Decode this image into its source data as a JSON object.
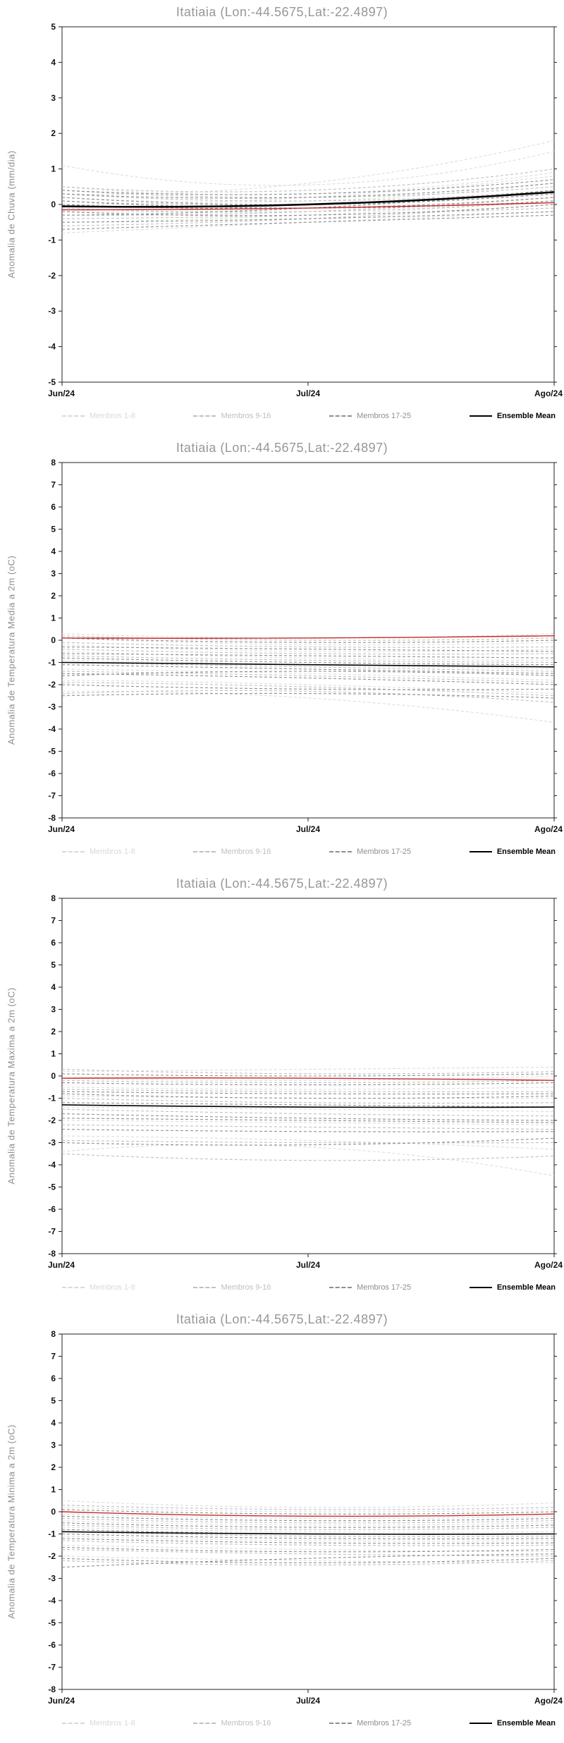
{
  "chart_data": [
    {
      "type": "line",
      "title": "Itatiaia (Lon:-44.5675,Lat:-22.4897)",
      "ylabel": "Anomalia de Chuva (mm/dia)",
      "ylim": [
        -5,
        5
      ],
      "x_ticklabels": [
        "Jun/24",
        "Jul/24",
        "Ago/24"
      ],
      "legend": [
        {
          "label": "Membros 1-8",
          "color": "#d9d9d9",
          "style": "dashed"
        },
        {
          "label": "Membros 9-16",
          "color": "#bfbfbf",
          "style": "dashed"
        },
        {
          "label": "Membros 17-25",
          "color": "#8f8f8f",
          "style": "dashed"
        },
        {
          "label": "Ensemble Mean",
          "color": "#000000",
          "style": "solid"
        }
      ],
      "colors": {
        "group1": "#dcdcdc",
        "group2": "#bfbfbf",
        "group3": "#8f8f8f",
        "mean": "#000000",
        "red": "#c62828"
      },
      "members_1_8": [
        [
          1.1,
          0.55,
          1.5
        ],
        [
          0.3,
          0.6,
          1.8
        ],
        [
          0.5,
          0.3,
          0.9
        ],
        [
          0.2,
          0.1,
          0.6
        ],
        [
          -0.2,
          -0.1,
          0.4
        ],
        [
          -0.5,
          -0.3,
          0.1
        ],
        [
          0.0,
          0.2,
          0.8
        ],
        [
          -0.8,
          -0.5,
          -0.2
        ]
      ],
      "members_9_16": [
        [
          0.4,
          0.2,
          0.5
        ],
        [
          0.1,
          0.0,
          0.3
        ],
        [
          -0.3,
          -0.2,
          0.2
        ],
        [
          -0.6,
          -0.4,
          0.0
        ],
        [
          0.3,
          0.1,
          0.4
        ],
        [
          -0.1,
          -0.2,
          0.1
        ],
        [
          -0.4,
          -0.3,
          -0.1
        ],
        [
          0.5,
          0.4,
          1.0
        ]
      ],
      "members_17_25": [
        [
          0.3,
          0.2,
          0.6
        ],
        [
          0.0,
          -0.1,
          0.2
        ],
        [
          -0.2,
          -0.3,
          0.0
        ],
        [
          -0.5,
          -0.4,
          -0.2
        ],
        [
          0.2,
          0.0,
          0.3
        ],
        [
          -0.7,
          -0.5,
          -0.3
        ],
        [
          0.1,
          -0.1,
          0.1
        ],
        [
          -0.3,
          -0.1,
          0.4
        ],
        [
          0.4,
          0.3,
          0.7
        ]
      ],
      "ensemble_mean": [
        -0.05,
        0.0,
        0.35
      ],
      "red_line": [
        -0.15,
        -0.1,
        0.05
      ]
    },
    {
      "type": "line",
      "title": "Itatiaia (Lon:-44.5675,Lat:-22.4897)",
      "ylabel": "Anomalia de Temperatura Media a 2m (oC)",
      "ylim": [
        -8,
        8
      ],
      "x_ticklabels": [
        "Jun/24",
        "Jul/24",
        "Ago/24"
      ],
      "legend": [
        {
          "label": "Membros 1-8",
          "color": "#d9d9d9",
          "style": "dashed"
        },
        {
          "label": "Membros 9-16",
          "color": "#bfbfbf",
          "style": "dashed"
        },
        {
          "label": "Membros 17-25",
          "color": "#8f8f8f",
          "style": "dashed"
        },
        {
          "label": "Ensemble Mean",
          "color": "#000000",
          "style": "solid"
        }
      ],
      "colors": {
        "group1": "#dcdcdc",
        "group2": "#bfbfbf",
        "group3": "#8f8f8f",
        "mean": "#000000",
        "red": "#c62828"
      },
      "members_1_8": [
        [
          0.3,
          0.1,
          0.3
        ],
        [
          0.1,
          -0.2,
          -0.1
        ],
        [
          -0.2,
          -0.5,
          -0.4
        ],
        [
          -0.5,
          -0.8,
          -0.9
        ],
        [
          -0.9,
          -1.1,
          -1.3
        ],
        [
          -1.3,
          -1.5,
          -1.8
        ],
        [
          -1.8,
          -2.0,
          -2.4
        ],
        [
          -2.3,
          -2.6,
          -3.7
        ]
      ],
      "members_9_16": [
        [
          0.2,
          0.0,
          0.1
        ],
        [
          -0.1,
          -0.3,
          -0.3
        ],
        [
          -0.4,
          -0.6,
          -0.6
        ],
        [
          -0.7,
          -0.9,
          -1.0
        ],
        [
          -1.0,
          -1.2,
          -1.4
        ],
        [
          -1.4,
          -1.6,
          -1.9
        ],
        [
          -1.9,
          -2.1,
          -2.5
        ],
        [
          -2.4,
          -2.3,
          -2.8
        ]
      ],
      "members_17_25": [
        [
          0.1,
          -0.1,
          0.0
        ],
        [
          -0.3,
          -0.4,
          -0.5
        ],
        [
          -0.6,
          -0.7,
          -0.8
        ],
        [
          -0.8,
          -1.0,
          -1.1
        ],
        [
          -1.1,
          -1.3,
          -1.5
        ],
        [
          -1.5,
          -1.7,
          -2.0
        ],
        [
          -2.0,
          -2.2,
          -2.2
        ],
        [
          -2.5,
          -2.4,
          -2.6
        ],
        [
          -1.6,
          -1.4,
          -1.6
        ]
      ],
      "ensemble_mean": [
        -1.0,
        -1.1,
        -1.2
      ],
      "red_line": [
        0.1,
        0.1,
        0.2
      ]
    },
    {
      "type": "line",
      "title": "Itatiaia (Lon:-44.5675,Lat:-22.4897)",
      "ylabel": "Anomalia de Temperatura Maxima a 2m (oC)",
      "ylim": [
        -8,
        8
      ],
      "x_ticklabels": [
        "Jun/24",
        "Jul/24",
        "Ago/24"
      ],
      "legend": [
        {
          "label": "Membros 1-8",
          "color": "#d9d9d9",
          "style": "dashed"
        },
        {
          "label": "Membros 9-16",
          "color": "#bfbfbf",
          "style": "dashed"
        },
        {
          "label": "Membros 17-25",
          "color": "#8f8f8f",
          "style": "dashed"
        },
        {
          "label": "Ensemble Mean",
          "color": "#000000",
          "style": "solid"
        }
      ],
      "colors": {
        "group1": "#dcdcdc",
        "group2": "#bfbfbf",
        "group3": "#8f8f8f",
        "mean": "#000000",
        "red": "#c62828"
      },
      "members_1_8": [
        [
          0.2,
          0.3,
          0.4
        ],
        [
          -0.1,
          -0.2,
          0.0
        ],
        [
          -0.5,
          -0.6,
          -0.5
        ],
        [
          -0.9,
          -1.0,
          -1.0
        ],
        [
          -1.4,
          -1.5,
          -1.6
        ],
        [
          -2.0,
          -2.1,
          -2.2
        ],
        [
          -2.7,
          -2.9,
          -3.3
        ],
        [
          -3.4,
          -3.2,
          -4.5
        ]
      ],
      "members_9_16": [
        [
          0.3,
          0.1,
          0.2
        ],
        [
          -0.2,
          -0.3,
          -0.2
        ],
        [
          -0.6,
          -0.7,
          -0.7
        ],
        [
          -1.0,
          -1.2,
          -1.2
        ],
        [
          -1.5,
          -1.7,
          -1.8
        ],
        [
          -2.2,
          -2.3,
          -2.4
        ],
        [
          -2.9,
          -3.0,
          -3.0
        ],
        [
          -3.5,
          -3.8,
          -3.6
        ]
      ],
      "members_17_25": [
        [
          0.1,
          0.0,
          0.1
        ],
        [
          -0.3,
          -0.4,
          -0.3
        ],
        [
          -0.7,
          -0.8,
          -0.8
        ],
        [
          -1.2,
          -1.3,
          -1.4
        ],
        [
          -1.7,
          -1.9,
          -2.0
        ],
        [
          -2.4,
          -2.5,
          -2.5
        ],
        [
          -3.0,
          -3.1,
          -2.8
        ],
        [
          -1.9,
          -2.0,
          -2.1
        ],
        [
          -0.8,
          -1.0,
          -0.9
        ]
      ],
      "ensemble_mean": [
        -1.3,
        -1.4,
        -1.4
      ],
      "red_line": [
        -0.1,
        -0.1,
        -0.2
      ]
    },
    {
      "type": "line",
      "title": "Itatiaia (Lon:-44.5675,Lat:-22.4897)",
      "ylabel": "Anomalia de Temperatura Minima a 2m (oC)",
      "ylim": [
        -8,
        8
      ],
      "x_ticklabels": [
        "Jun/24",
        "Jul/24",
        "Ago/24"
      ],
      "legend": [
        {
          "label": "Membros 1-8",
          "color": "#d9d9d9",
          "style": "dashed"
        },
        {
          "label": "Membros 9-16",
          "color": "#bfbfbf",
          "style": "dashed"
        },
        {
          "label": "Membros 17-25",
          "color": "#8f8f8f",
          "style": "dashed"
        },
        {
          "label": "Ensemble Mean",
          "color": "#000000",
          "style": "solid"
        }
      ],
      "colors": {
        "group1": "#dcdcdc",
        "group2": "#bfbfbf",
        "group3": "#8f8f8f",
        "mean": "#000000",
        "red": "#c62828"
      },
      "members_1_8": [
        [
          0.5,
          0.2,
          0.4
        ],
        [
          0.2,
          0.0,
          0.1
        ],
        [
          -0.1,
          -0.3,
          -0.2
        ],
        [
          -0.4,
          -0.6,
          -0.5
        ],
        [
          -0.7,
          -0.9,
          -0.9
        ],
        [
          -1.1,
          -1.3,
          -1.3
        ],
        [
          -1.5,
          -1.7,
          -1.8
        ],
        [
          -2.0,
          -2.2,
          -2.3
        ]
      ],
      "members_9_16": [
        [
          0.3,
          0.1,
          0.2
        ],
        [
          0.0,
          -0.2,
          -0.1
        ],
        [
          -0.3,
          -0.5,
          -0.4
        ],
        [
          -0.6,
          -0.8,
          -0.7
        ],
        [
          -0.9,
          -1.1,
          -1.1
        ],
        [
          -1.3,
          -1.5,
          -1.5
        ],
        [
          -1.7,
          -1.9,
          -2.0
        ],
        [
          -2.2,
          -2.4,
          -2.2
        ]
      ],
      "members_17_25": [
        [
          0.1,
          -0.1,
          0.0
        ],
        [
          -0.2,
          -0.4,
          -0.3
        ],
        [
          -0.5,
          -0.7,
          -0.6
        ],
        [
          -0.8,
          -1.0,
          -1.0
        ],
        [
          -1.2,
          -1.4,
          -1.4
        ],
        [
          -1.6,
          -1.8,
          -1.7
        ],
        [
          -2.1,
          -2.3,
          -2.1
        ],
        [
          -2.5,
          -2.1,
          -1.9
        ],
        [
          -1.0,
          -1.2,
          -1.2
        ]
      ],
      "ensemble_mean": [
        -0.9,
        -1.0,
        -1.0
      ],
      "red_line": [
        0.0,
        -0.2,
        -0.1
      ]
    }
  ]
}
